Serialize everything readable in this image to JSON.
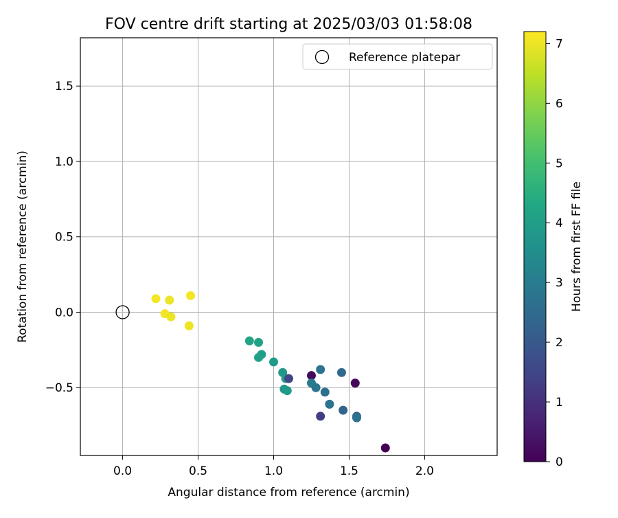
{
  "chart_data": {
    "type": "scatter",
    "title": "FOV centre drift starting at 2025/03/03 01:58:08",
    "xlabel": "Angular distance from reference (arcmin)",
    "ylabel": "Rotation from reference (arcmin)",
    "xlim": [
      -0.28,
      2.48
    ],
    "ylim": [
      -0.95,
      1.82
    ],
    "xticks": [
      0.0,
      0.5,
      1.0,
      1.5,
      2.0
    ],
    "xtick_labels": [
      "0.0",
      "0.5",
      "1.0",
      "1.5",
      "2.0"
    ],
    "yticks": [
      -0.5,
      0.0,
      0.5,
      1.0,
      1.5
    ],
    "ytick_labels": [
      "−0.5",
      "0.0",
      "0.5",
      "1.0",
      "1.5"
    ],
    "grid": true,
    "legend": {
      "position": "top-right",
      "entries": [
        "Reference platepar"
      ]
    },
    "reference_point": {
      "x": 0.0,
      "y": 0.0
    },
    "colorbar": {
      "label": "Hours from first FF file",
      "range": [
        0,
        7.2
      ],
      "ticks": [
        0,
        1,
        2,
        3,
        4,
        5,
        6,
        7
      ],
      "tick_labels": [
        "0",
        "1",
        "2",
        "3",
        "4",
        "5",
        "6",
        "7"
      ],
      "colormap": "viridis"
    },
    "points": [
      {
        "x": 0.22,
        "y": 0.09,
        "t": 7.1
      },
      {
        "x": 0.31,
        "y": 0.08,
        "t": 7.0
      },
      {
        "x": 0.45,
        "y": 0.11,
        "t": 7.1
      },
      {
        "x": 0.28,
        "y": -0.01,
        "t": 7.1
      },
      {
        "x": 0.32,
        "y": -0.03,
        "t": 7.0
      },
      {
        "x": 0.44,
        "y": -0.09,
        "t": 7.0
      },
      {
        "x": 0.84,
        "y": -0.19,
        "t": 4.2
      },
      {
        "x": 0.9,
        "y": -0.2,
        "t": 4.1
      },
      {
        "x": 0.92,
        "y": -0.28,
        "t": 4.0
      },
      {
        "x": 0.9,
        "y": -0.3,
        "t": 4.1
      },
      {
        "x": 1.0,
        "y": -0.33,
        "t": 3.9
      },
      {
        "x": 1.06,
        "y": -0.4,
        "t": 3.8
      },
      {
        "x": 1.08,
        "y": -0.44,
        "t": 3.9
      },
      {
        "x": 1.1,
        "y": -0.44,
        "t": 1.5
      },
      {
        "x": 1.07,
        "y": -0.51,
        "t": 3.8
      },
      {
        "x": 1.09,
        "y": -0.52,
        "t": 3.9
      },
      {
        "x": 1.25,
        "y": -0.42,
        "t": 0.2
      },
      {
        "x": 1.25,
        "y": -0.47,
        "t": 3.0
      },
      {
        "x": 1.28,
        "y": -0.5,
        "t": 2.8
      },
      {
        "x": 1.31,
        "y": -0.38,
        "t": 2.7
      },
      {
        "x": 1.34,
        "y": -0.53,
        "t": 2.6
      },
      {
        "x": 1.37,
        "y": -0.61,
        "t": 2.7
      },
      {
        "x": 1.45,
        "y": -0.4,
        "t": 2.5
      },
      {
        "x": 1.46,
        "y": -0.65,
        "t": 2.3
      },
      {
        "x": 1.54,
        "y": -0.47,
        "t": 0.1
      },
      {
        "x": 1.55,
        "y": -0.69,
        "t": 2.2
      },
      {
        "x": 1.55,
        "y": -0.7,
        "t": 2.7
      },
      {
        "x": 1.31,
        "y": -0.69,
        "t": 1.3
      },
      {
        "x": 1.74,
        "y": -0.9,
        "t": 0.0
      }
    ]
  }
}
